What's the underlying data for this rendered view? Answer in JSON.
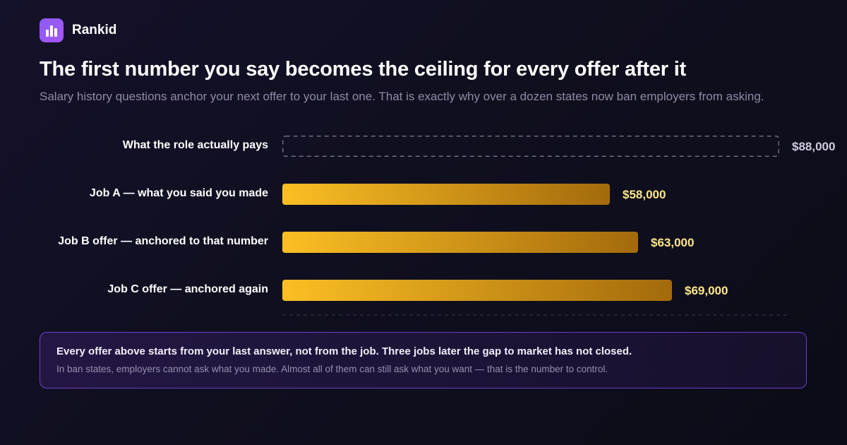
{
  "brand": {
    "name": "Rankid",
    "icon": "bar-chart-icon",
    "accent": "#8b5cf6"
  },
  "header": {
    "title": "The first number you say becomes the ceiling for every offer after it",
    "subtitle": "Salary history questions anchor your next offer to your last one. That is exactly why over a dozen states now ban employers from asking."
  },
  "chart_data": {
    "type": "bar",
    "orientation": "horizontal",
    "categories": [
      "What the role actually pays",
      "Job A — what you said you made",
      "Job B offer — anchored to that number",
      "Job C offer — anchored again"
    ],
    "values": [
      88000,
      58000,
      63000,
      69000
    ],
    "value_labels": [
      "$88,000",
      "$58,000",
      "$63,000",
      "$69,000"
    ],
    "bar_styles": [
      "dashed-outline",
      "filled",
      "filled",
      "filled"
    ],
    "xlim": [
      0,
      88000
    ],
    "grid": false,
    "colors": {
      "bar_start": "#fbbf24",
      "bar_end": "#a36a0c",
      "value_text": "#fde68a",
      "reference_value_text": "#cfcbe0",
      "reference_stroke": "#6f6b85"
    }
  },
  "callout": {
    "main": "Every offer above starts from your last answer, not from the job. Three jobs later the gap to market has not closed.",
    "sub": "In ban states, employers cannot ask what you made. Almost all of them can still ask what you want — that is the number to control."
  }
}
